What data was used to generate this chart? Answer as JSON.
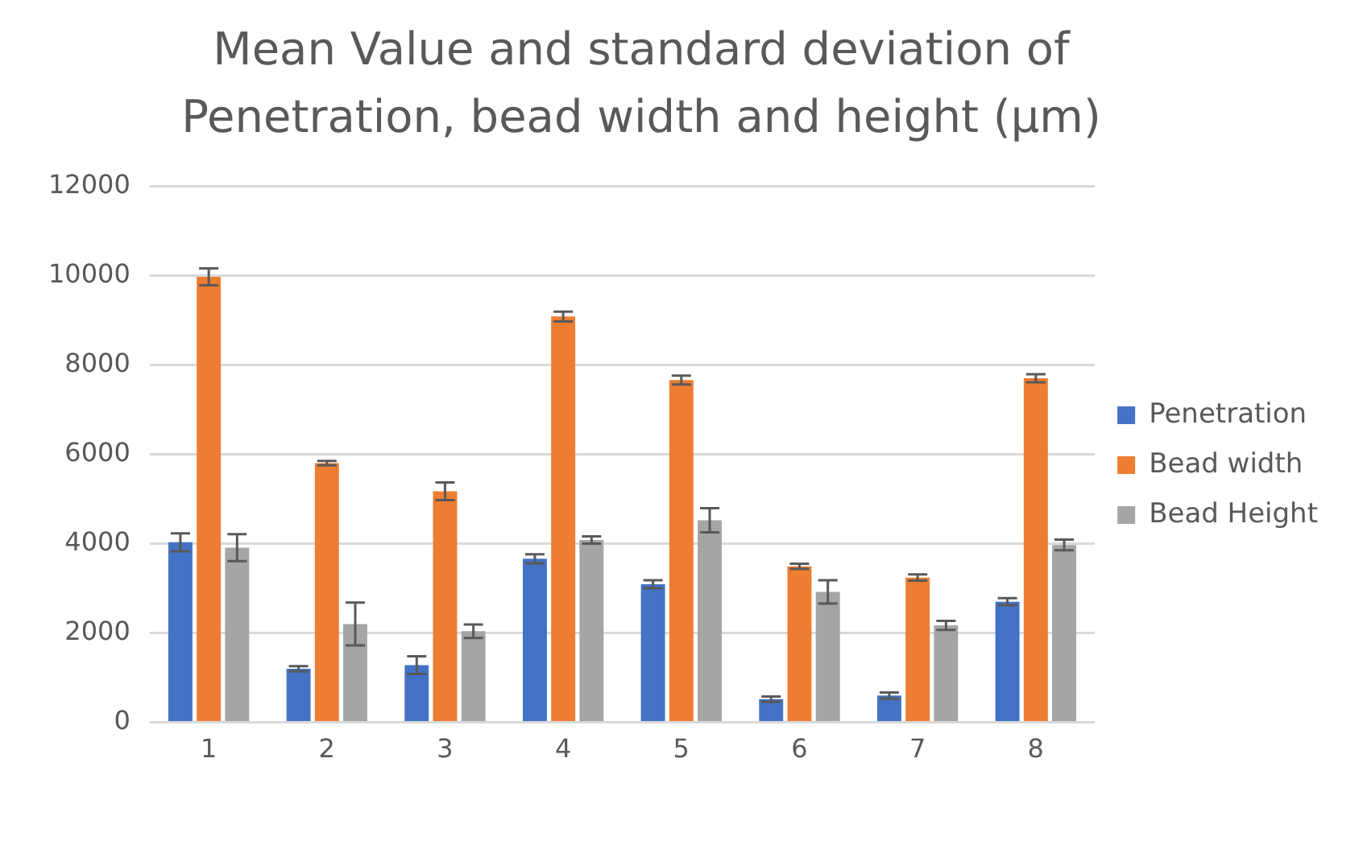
{
  "chart_data": {
    "type": "bar",
    "title": "Mean Value and standard deviation of Penetration, bead width and height (µm)",
    "categories": [
      "1",
      "2",
      "3",
      "4",
      "5",
      "6",
      "7",
      "8"
    ],
    "series": [
      {
        "name": "Penetration",
        "color": "#4472c4",
        "values": [
          4030,
          1200,
          1280,
          3660,
          3090,
          520,
          600,
          2700
        ],
        "errors": [
          200,
          60,
          200,
          100,
          90,
          60,
          70,
          80
        ]
      },
      {
        "name": "Bead width",
        "color": "#ed7d31",
        "values": [
          9970,
          5800,
          5170,
          9080,
          7660,
          3490,
          3240,
          7700
        ],
        "errors": [
          190,
          50,
          200,
          110,
          100,
          60,
          70,
          90
        ]
      },
      {
        "name": "Bead Height",
        "color": "#a5a5a5",
        "values": [
          3910,
          2200,
          2040,
          4080,
          4520,
          2920,
          2170,
          3970
        ],
        "errors": [
          300,
          480,
          150,
          80,
          270,
          260,
          100,
          120
        ]
      }
    ],
    "ylim": [
      0,
      12000
    ],
    "yticks": [
      0,
      2000,
      4000,
      6000,
      8000,
      10000,
      12000
    ],
    "grid": "y",
    "legend": "right"
  }
}
